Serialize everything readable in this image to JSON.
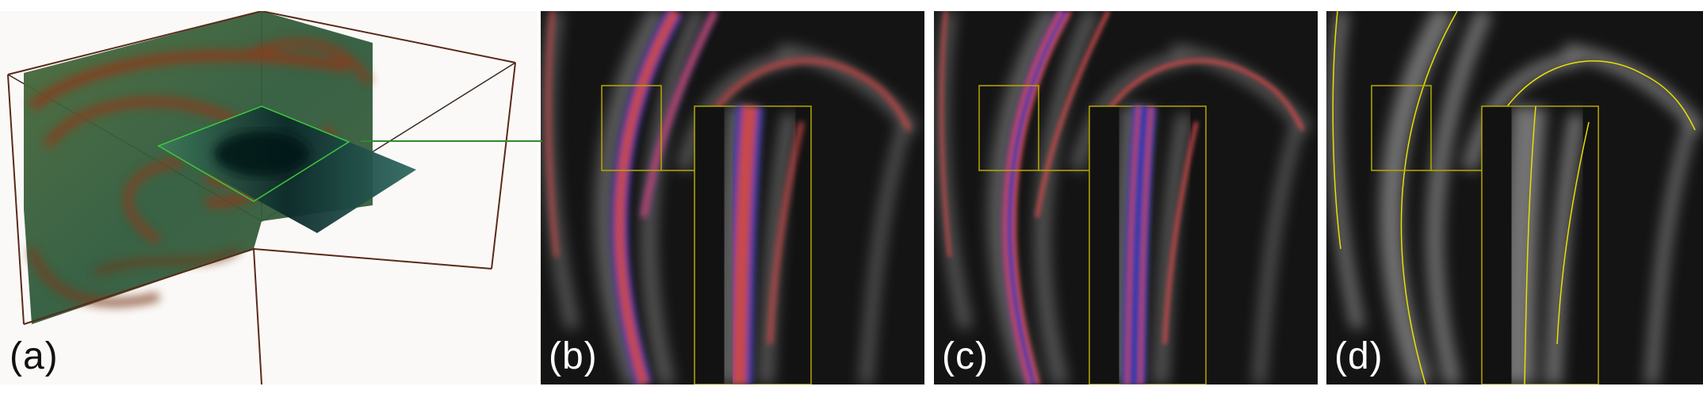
{
  "panels": [
    {
      "id": "a",
      "label": "(a)"
    },
    {
      "id": "b",
      "label": "(b)"
    },
    {
      "id": "c",
      "label": "(c)"
    },
    {
      "id": "d",
      "label": "(d)"
    }
  ],
  "colors": {
    "background_dark": "#111111",
    "ridge_red": "#c84a4a",
    "ridge_blue": "#3a3aa8",
    "ridge_yellow": "#e8e000",
    "inset_frame": "#b5a800",
    "connector_green": "#2e8b2e",
    "volume_green": "#2e5a2e",
    "volume_red": "#8b3a1a",
    "bounding_box": "#5a2a1a"
  }
}
